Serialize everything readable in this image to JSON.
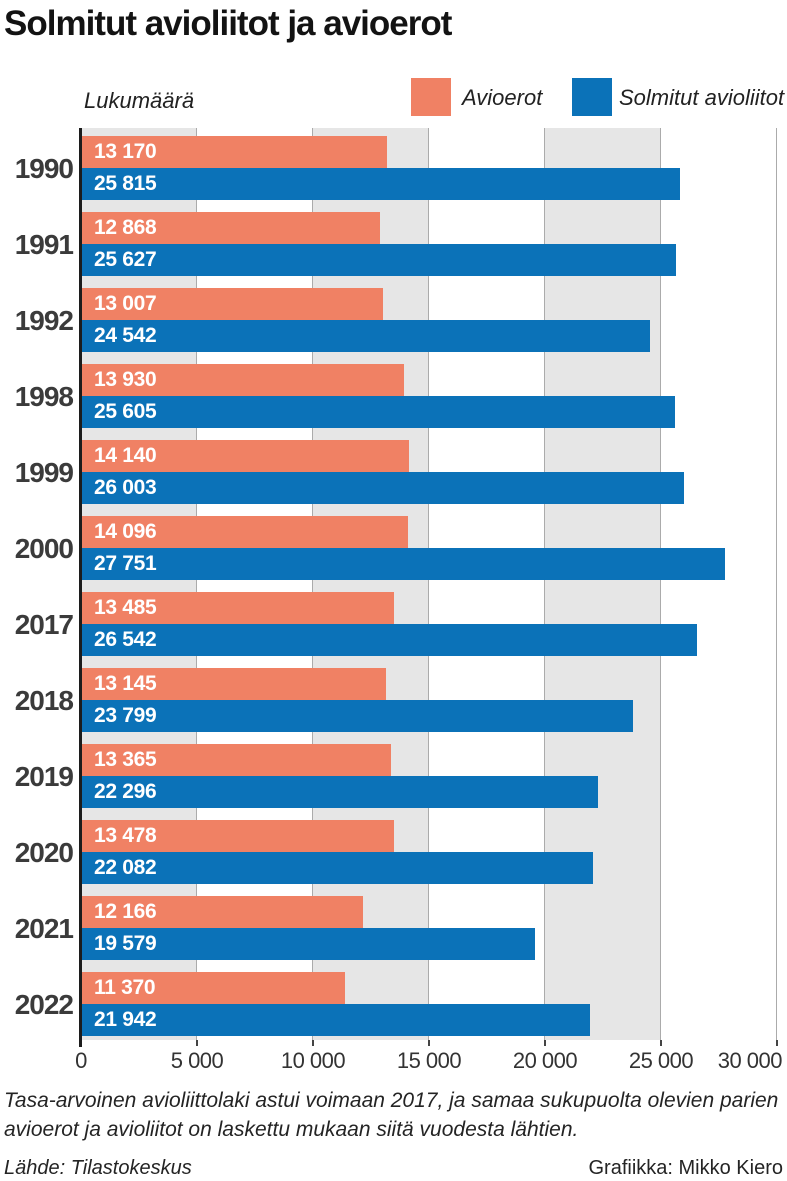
{
  "title": "Solmitut avioliitot ja avioerot",
  "y_axis_unit": "Lukumäärä",
  "colors": {
    "divorce": "#f08164",
    "marriage": "#0b72b8",
    "band_gray": "#e6e6e6",
    "gridline": "#ababab",
    "axis": "#1c1c1c"
  },
  "chart_data": {
    "type": "bar",
    "orientation": "horizontal",
    "title": "Solmitut avioliitot ja avioerot",
    "xlabel": "",
    "ylabel": "Lukumäärä",
    "xlim": [
      0,
      30000
    ],
    "grid": "vertical-bands-every-5000",
    "legend_position": "top-right",
    "legend": [
      {
        "label": "Avioerot",
        "color": "#f08164"
      },
      {
        "label": "Solmitut avioliitot",
        "color": "#0b72b8"
      }
    ],
    "x_ticks": {
      "values": [
        0,
        5000,
        10000,
        15000,
        20000,
        25000,
        30000
      ],
      "labels": [
        "0",
        "5 000",
        "10 000",
        "15 000",
        "20 000",
        "25 000",
        "30 000"
      ]
    },
    "categories": [
      "1990",
      "1991",
      "1992",
      "1998",
      "1999",
      "2000",
      "2017",
      "2018",
      "2019",
      "2020",
      "2021",
      "2022"
    ],
    "series": [
      {
        "name": "Avioerot",
        "values": [
          13170,
          12868,
          13007,
          13930,
          14140,
          14096,
          13485,
          13145,
          13365,
          13478,
          12166,
          11370
        ],
        "labels": [
          "13 170",
          "12 868",
          "13 007",
          "13 930",
          "14 140",
          "14 096",
          "13 485",
          "13 145",
          "13 365",
          "13 478",
          "12 166",
          "11 370"
        ]
      },
      {
        "name": "Solmitut avioliitot",
        "values": [
          25815,
          25627,
          24542,
          25605,
          26003,
          27751,
          26542,
          23799,
          22296,
          22082,
          19579,
          21942
        ],
        "labels": [
          "25 815",
          "25 627",
          "24 542",
          "25 605",
          "26 003",
          "27 751",
          "26 542",
          "23 799",
          "22 296",
          "22 082",
          "19 579",
          "21 942"
        ]
      }
    ]
  },
  "footnote_lines": [
    "Tasa-arvoinen avioliittolaki astui voimaan 2017, ja samaa sukupuolta olevien parien",
    "avioerot ja avioliitot on laskettu mukaan siitä vuodesta lähtien."
  ],
  "source": "Lähde: Tilastokeskus",
  "credit": "Grafiikka: Mikko Kiero"
}
